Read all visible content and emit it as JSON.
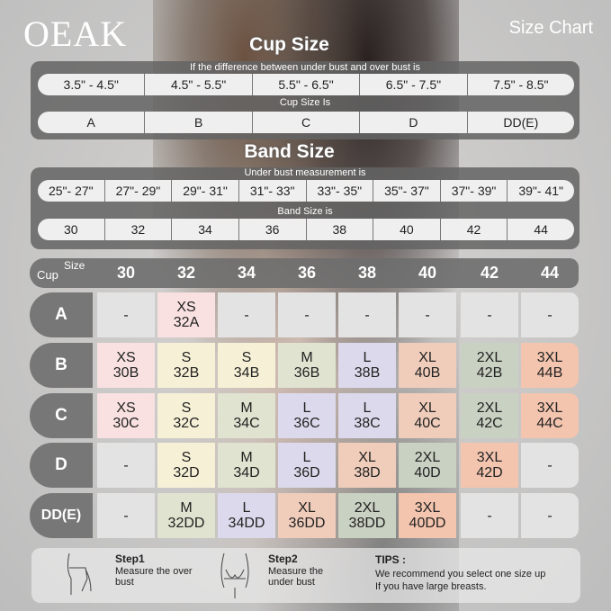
{
  "brand": "OEAK",
  "title": "Size Chart",
  "cup": {
    "title": "Cup Size",
    "subtitle": "If the  difference between under bust and over bust is",
    "ranges": [
      "3.5\" - 4.5\"",
      "4.5\" - 5.5\"",
      "5.5\" - 6.5\"",
      "6.5\" - 7.5\"",
      "7.5\" - 8.5\""
    ],
    "label": "Cup Size Is",
    "sizes": [
      "A",
      "B",
      "C",
      "D",
      "DD(E)"
    ]
  },
  "band": {
    "title": "Band Size",
    "subtitle": "Under bust measurement is",
    "ranges": [
      "25\"- 27\"",
      "27\"- 29\"",
      "29\"- 31\"",
      "31\"- 33\"",
      "33\"- 35\"",
      "35\"- 37\"",
      "37\"- 39\"",
      "39\"- 41\""
    ],
    "label": "Band Size is",
    "sizes": [
      "30",
      "32",
      "34",
      "36",
      "38",
      "40",
      "42",
      "44"
    ]
  },
  "matrix": {
    "size_label": "Size",
    "cup_label": "Cup",
    "columns": [
      "30",
      "32",
      "34",
      "36",
      "38",
      "40",
      "42",
      "44"
    ],
    "rows": [
      {
        "cup": "A",
        "cells": [
          [
            "-",
            ""
          ],
          [
            "XS",
            "32A"
          ],
          [
            "-",
            ""
          ],
          [
            "-",
            ""
          ],
          [
            "-",
            ""
          ],
          [
            "-",
            ""
          ],
          [
            "-",
            ""
          ],
          [
            "-",
            ""
          ]
        ]
      },
      {
        "cup": "B",
        "cells": [
          [
            "XS",
            "30B"
          ],
          [
            "S",
            "32B"
          ],
          [
            "S",
            "34B"
          ],
          [
            "M",
            "36B"
          ],
          [
            "L",
            "38B"
          ],
          [
            "XL",
            "40B"
          ],
          [
            "2XL",
            "42B"
          ],
          [
            "3XL",
            "44B"
          ]
        ]
      },
      {
        "cup": "C",
        "cells": [
          [
            "XS",
            "30C"
          ],
          [
            "S",
            "32C"
          ],
          [
            "M",
            "34C"
          ],
          [
            "L",
            "36C"
          ],
          [
            "L",
            "38C"
          ],
          [
            "XL",
            "40C"
          ],
          [
            "2XL",
            "42C"
          ],
          [
            "3XL",
            "44C"
          ]
        ]
      },
      {
        "cup": "D",
        "cells": [
          [
            "-",
            ""
          ],
          [
            "S",
            "32D"
          ],
          [
            "M",
            "34D"
          ],
          [
            "L",
            "36D"
          ],
          [
            "XL",
            "38D"
          ],
          [
            "2XL",
            "40D"
          ],
          [
            "3XL",
            "42D"
          ],
          [
            "-",
            ""
          ]
        ]
      },
      {
        "cup": "DD(E)",
        "cells": [
          [
            "-",
            ""
          ],
          [
            "M",
            "32DD"
          ],
          [
            "L",
            "34DD"
          ],
          [
            "XL",
            "36DD"
          ],
          [
            "2XL",
            "38DD"
          ],
          [
            "3XL",
            "40DD"
          ],
          [
            "-",
            ""
          ],
          [
            "-",
            ""
          ]
        ]
      }
    ]
  },
  "size_colors": {
    "-": "#e4e3e3",
    "XS": "#f8e1e0",
    "S": "#f6f1d6",
    "M": "#dfe3cf",
    "L": "#ddd9ec",
    "XL": "#f0cdbb",
    "2XL": "#c9d1c2",
    "3XL": "#f3c4ae"
  },
  "footer": {
    "step1_title": "Step1",
    "step1_text": "Measure the over bust",
    "step2_title": "Step2",
    "step2_text": "Measure the under bust",
    "tips_title": "TIPS :",
    "tips_line1": "We recommend you select one size up",
    "tips_line2": "If you have large breasts."
  }
}
